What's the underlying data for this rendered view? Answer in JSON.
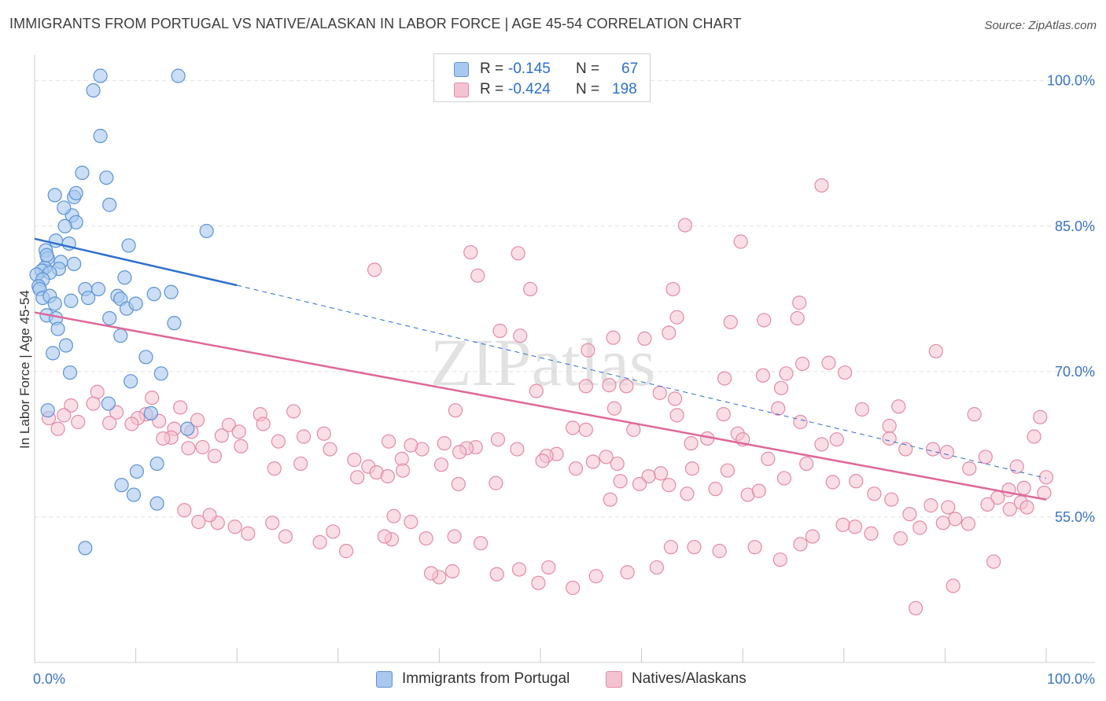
{
  "title": "IMMIGRANTS FROM PORTUGAL VS NATIVE/ALASKAN IN LABOR FORCE | AGE 45-54 CORRELATION CHART",
  "source": "Source: ZipAtlas.com",
  "watermark": "ZIPatlas",
  "legend": {
    "rows": [
      {
        "r_label": "R =",
        "r_value": "-0.145",
        "n_label": "N =",
        "n_value": "67"
      },
      {
        "r_label": "R =",
        "r_value": "-0.424",
        "n_label": "N =",
        "n_value": "198"
      }
    ]
  },
  "bottom_legend": {
    "items": [
      "Immigrants from Portugal",
      "Natives/Alaskans"
    ]
  },
  "colors": {
    "blue_fill": "#a9c8ef",
    "blue_stroke": "#5a93d8",
    "blue_line": "#2f6fd0",
    "pink_fill": "#f5c2d1",
    "pink_stroke": "#e48aa8",
    "pink_line": "#e0679a",
    "tick_text": "#3a74c8",
    "grid": "#e2e2e2"
  },
  "chart_data": {
    "type": "scatter",
    "title": "IMMIGRANTS FROM PORTUGAL VS NATIVE/ALASKAN IN LABOR FORCE | AGE 45-54 CORRELATION CHART",
    "xlabel": "",
    "ylabel": "In Labor Force | Age 45-54",
    "xlim": [
      0,
      100
    ],
    "ylim": [
      40,
      102
    ],
    "x_tick_labels": [
      "0.0%",
      "100.0%"
    ],
    "y_ticks": [
      55,
      70,
      85,
      100
    ],
    "y_tick_labels": [
      "55.0%",
      "70.0%",
      "85.0%",
      "100.0%"
    ],
    "grid": true,
    "legend_position": "top-center",
    "series": [
      {
        "name": "Immigrants from Portugal",
        "color": "#a9c8ef",
        "r": -0.145,
        "n": 67,
        "trend": {
          "x0": 0,
          "y0": 83.7,
          "x1": 20,
          "y1": 78.9,
          "dash_to_x": 100,
          "dash_to_y": 59.0
        },
        "points": [
          [
            6.5,
            100.5
          ],
          [
            14.2,
            100.5
          ],
          [
            5.8,
            99.0
          ],
          [
            6.5,
            94.3
          ],
          [
            4.7,
            90.5
          ],
          [
            7.1,
            90.0
          ],
          [
            2.0,
            88.2
          ],
          [
            3.9,
            88.0
          ],
          [
            4.1,
            88.4
          ],
          [
            7.4,
            87.2
          ],
          [
            3.7,
            86.1
          ],
          [
            2.9,
            86.9
          ],
          [
            4.1,
            85.4
          ],
          [
            17.0,
            84.5
          ],
          [
            2.1,
            83.5
          ],
          [
            3.4,
            83.2
          ],
          [
            9.3,
            83.0
          ],
          [
            1.1,
            82.5
          ],
          [
            1.3,
            81.7
          ],
          [
            2.6,
            81.3
          ],
          [
            3.9,
            81.1
          ],
          [
            1.0,
            80.7
          ],
          [
            0.7,
            80.4
          ],
          [
            2.4,
            80.6
          ],
          [
            1.5,
            80.2
          ],
          [
            0.2,
            80.0
          ],
          [
            0.8,
            79.5
          ],
          [
            0.4,
            78.8
          ],
          [
            0.5,
            78.5
          ],
          [
            6.3,
            78.5
          ],
          [
            8.9,
            79.7
          ],
          [
            5.0,
            78.5
          ],
          [
            8.2,
            77.8
          ],
          [
            11.8,
            78.0
          ],
          [
            13.5,
            78.2
          ],
          [
            0.8,
            77.6
          ],
          [
            1.5,
            77.8
          ],
          [
            2.0,
            77.0
          ],
          [
            3.6,
            77.3
          ],
          [
            5.3,
            77.6
          ],
          [
            8.5,
            77.5
          ],
          [
            9.1,
            76.5
          ],
          [
            1.2,
            75.8
          ],
          [
            2.1,
            75.5
          ],
          [
            7.4,
            75.5
          ],
          [
            10.0,
            77.0
          ],
          [
            2.3,
            74.4
          ],
          [
            13.8,
            75.0
          ],
          [
            3.1,
            72.7
          ],
          [
            8.5,
            73.7
          ],
          [
            1.8,
            71.9
          ],
          [
            11.0,
            71.5
          ],
          [
            12.5,
            69.8
          ],
          [
            9.5,
            69.0
          ],
          [
            3.5,
            69.9
          ],
          [
            7.3,
            66.7
          ],
          [
            11.5,
            65.7
          ],
          [
            1.3,
            66.0
          ],
          [
            15.1,
            64.1
          ],
          [
            12.1,
            60.5
          ],
          [
            10.1,
            59.7
          ],
          [
            8.6,
            58.3
          ],
          [
            9.8,
            57.3
          ],
          [
            12.1,
            56.4
          ],
          [
            5.0,
            51.8
          ],
          [
            1.2,
            82.0
          ],
          [
            3.0,
            85.0
          ]
        ]
      },
      {
        "name": "Natives/Alaskans",
        "color": "#f5c2d1",
        "r": -0.424,
        "n": 198,
        "trend": {
          "x0": 0,
          "y0": 76.1,
          "x1": 100,
          "y1": 56.8
        },
        "points": [
          [
            77.8,
            89.2
          ],
          [
            64.3,
            85.1
          ],
          [
            69.8,
            83.4
          ],
          [
            43.1,
            82.3
          ],
          [
            47.8,
            82.2
          ],
          [
            43.8,
            79.9
          ],
          [
            33.6,
            80.5
          ],
          [
            49.0,
            78.5
          ],
          [
            63.1,
            78.5
          ],
          [
            75.6,
            77.1
          ],
          [
            75.4,
            75.5
          ],
          [
            68.8,
            75.1
          ],
          [
            72.1,
            75.3
          ],
          [
            63.5,
            75.6
          ],
          [
            62.7,
            74.0
          ],
          [
            46.0,
            74.2
          ],
          [
            48.0,
            73.7
          ],
          [
            57.2,
            73.5
          ],
          [
            60.3,
            73.4
          ],
          [
            54.7,
            72.2
          ],
          [
            75.9,
            70.8
          ],
          [
            89.1,
            72.1
          ],
          [
            78.5,
            70.9
          ],
          [
            74.3,
            69.8
          ],
          [
            72.0,
            69.6
          ],
          [
            80.1,
            69.9
          ],
          [
            68.2,
            69.3
          ],
          [
            56.8,
            68.6
          ],
          [
            54.5,
            68.5
          ],
          [
            49.6,
            68.0
          ],
          [
            58.5,
            68.5
          ],
          [
            61.8,
            67.8
          ],
          [
            73.8,
            68.3
          ],
          [
            63.3,
            67.2
          ],
          [
            73.5,
            66.2
          ],
          [
            85.4,
            66.4
          ],
          [
            84.5,
            64.4
          ],
          [
            99.4,
            65.3
          ],
          [
            81.8,
            66.1
          ],
          [
            92.9,
            65.6
          ],
          [
            63.5,
            65.5
          ],
          [
            41.6,
            66.0
          ],
          [
            57.3,
            66.2
          ],
          [
            53.2,
            64.2
          ],
          [
            54.5,
            64.0
          ],
          [
            59.2,
            64.0
          ],
          [
            68.1,
            65.6
          ],
          [
            69.5,
            63.6
          ],
          [
            75.7,
            64.8
          ],
          [
            77.8,
            62.5
          ],
          [
            79.3,
            63.0
          ],
          [
            84.5,
            63.1
          ],
          [
            86.1,
            62.0
          ],
          [
            88.8,
            62.0
          ],
          [
            90.2,
            61.7
          ],
          [
            92.4,
            60.0
          ],
          [
            94.0,
            61.2
          ],
          [
            97.1,
            60.2
          ],
          [
            98.8,
            63.3
          ],
          [
            66.5,
            63.1
          ],
          [
            64.9,
            62.6
          ],
          [
            70.0,
            63.0
          ],
          [
            72.5,
            61.0
          ],
          [
            76.3,
            60.5
          ],
          [
            65.0,
            60.0
          ],
          [
            68.5,
            59.8
          ],
          [
            61.9,
            59.5
          ],
          [
            60.7,
            59.2
          ],
          [
            57.9,
            58.7
          ],
          [
            57.6,
            60.5
          ],
          [
            56.5,
            61.2
          ],
          [
            55.2,
            60.7
          ],
          [
            51.6,
            61.5
          ],
          [
            50.6,
            61.3
          ],
          [
            47.7,
            62.0
          ],
          [
            43.6,
            62.2
          ],
          [
            42.7,
            62.1
          ],
          [
            38.3,
            62.0
          ],
          [
            36.3,
            61.0
          ],
          [
            35.0,
            62.8
          ],
          [
            33.0,
            60.2
          ],
          [
            31.6,
            60.9
          ],
          [
            29.2,
            62.0
          ],
          [
            26.3,
            60.5
          ],
          [
            26.6,
            63.3
          ],
          [
            23.7,
            60.0
          ],
          [
            24.1,
            62.8
          ],
          [
            22.3,
            65.6
          ],
          [
            20.4,
            62.3
          ],
          [
            17.8,
            61.3
          ],
          [
            16.6,
            62.2
          ],
          [
            15.5,
            63.8
          ],
          [
            13.8,
            64.1
          ],
          [
            13.5,
            63.2
          ],
          [
            11.0,
            65.6
          ],
          [
            10.2,
            65.2
          ],
          [
            9.6,
            64.6
          ],
          [
            8.1,
            65.8
          ],
          [
            7.4,
            64.7
          ],
          [
            6.2,
            67.9
          ],
          [
            5.8,
            66.7
          ],
          [
            4.3,
            64.8
          ],
          [
            3.6,
            66.5
          ],
          [
            2.9,
            65.5
          ],
          [
            2.3,
            64.1
          ],
          [
            1.4,
            65.2
          ],
          [
            11.6,
            67.3
          ],
          [
            14.4,
            66.3
          ],
          [
            16.1,
            65.0
          ],
          [
            15.2,
            62.1
          ],
          [
            12.7,
            63.1
          ],
          [
            12.3,
            64.9
          ],
          [
            19.2,
            64.5
          ],
          [
            20.2,
            63.8
          ],
          [
            18.5,
            63.4
          ],
          [
            22.6,
            64.6
          ],
          [
            25.6,
            65.9
          ],
          [
            28.6,
            63.6
          ],
          [
            31.9,
            59.1
          ],
          [
            33.8,
            59.6
          ],
          [
            34.9,
            59.2
          ],
          [
            36.4,
            59.8
          ],
          [
            37.2,
            62.4
          ],
          [
            40.5,
            62.6
          ],
          [
            42.0,
            61.7
          ],
          [
            45.8,
            63.0
          ],
          [
            40.2,
            60.4
          ],
          [
            41.9,
            58.4
          ],
          [
            45.6,
            58.5
          ],
          [
            50.2,
            60.8
          ],
          [
            53.5,
            60.0
          ],
          [
            56.9,
            56.8
          ],
          [
            59.8,
            58.4
          ],
          [
            62.7,
            58.3
          ],
          [
            64.5,
            57.4
          ],
          [
            67.3,
            57.9
          ],
          [
            70.5,
            57.3
          ],
          [
            71.6,
            57.7
          ],
          [
            74.1,
            59.0
          ],
          [
            78.9,
            58.6
          ],
          [
            81.2,
            58.7
          ],
          [
            83.0,
            57.4
          ],
          [
            84.7,
            56.8
          ],
          [
            86.5,
            55.3
          ],
          [
            88.6,
            56.2
          ],
          [
            90.3,
            56.0
          ],
          [
            91.0,
            54.8
          ],
          [
            95.2,
            57.0
          ],
          [
            96.3,
            57.8
          ],
          [
            97.8,
            58.0
          ],
          [
            100.0,
            59.1
          ],
          [
            99.8,
            57.5
          ],
          [
            97.5,
            56.5
          ],
          [
            94.2,
            56.3
          ],
          [
            92.3,
            54.3
          ],
          [
            89.8,
            54.4
          ],
          [
            87.5,
            53.9
          ],
          [
            85.6,
            52.8
          ],
          [
            82.7,
            53.3
          ],
          [
            81.1,
            54.0
          ],
          [
            79.9,
            54.2
          ],
          [
            76.9,
            53.0
          ],
          [
            75.7,
            52.2
          ],
          [
            73.7,
            50.6
          ],
          [
            71.2,
            51.9
          ],
          [
            67.7,
            51.5
          ],
          [
            65.2,
            51.9
          ],
          [
            62.9,
            51.9
          ],
          [
            61.5,
            49.8
          ],
          [
            58.6,
            49.3
          ],
          [
            55.5,
            48.9
          ],
          [
            53.2,
            47.7
          ],
          [
            50.8,
            49.8
          ],
          [
            49.8,
            48.2
          ],
          [
            47.9,
            49.6
          ],
          [
            45.7,
            49.1
          ],
          [
            44.1,
            52.3
          ],
          [
            41.5,
            53.0
          ],
          [
            41.3,
            49.4
          ],
          [
            40.0,
            48.8
          ],
          [
            39.2,
            49.2
          ],
          [
            38.7,
            52.8
          ],
          [
            37.2,
            54.5
          ],
          [
            35.5,
            55.1
          ],
          [
            35.3,
            52.7
          ],
          [
            34.6,
            53.0
          ],
          [
            30.8,
            51.5
          ],
          [
            29.5,
            53.5
          ],
          [
            28.2,
            52.4
          ],
          [
            24.8,
            53.0
          ],
          [
            23.5,
            54.4
          ],
          [
            21.1,
            53.3
          ],
          [
            19.8,
            54.0
          ],
          [
            18.1,
            54.4
          ],
          [
            17.3,
            55.2
          ],
          [
            16.2,
            54.5
          ],
          [
            14.8,
            55.7
          ],
          [
            98.1,
            56.0
          ],
          [
            96.4,
            55.8
          ],
          [
            90.8,
            47.9
          ],
          [
            94.8,
            50.4
          ],
          [
            87.1,
            45.6
          ]
        ]
      }
    ]
  }
}
